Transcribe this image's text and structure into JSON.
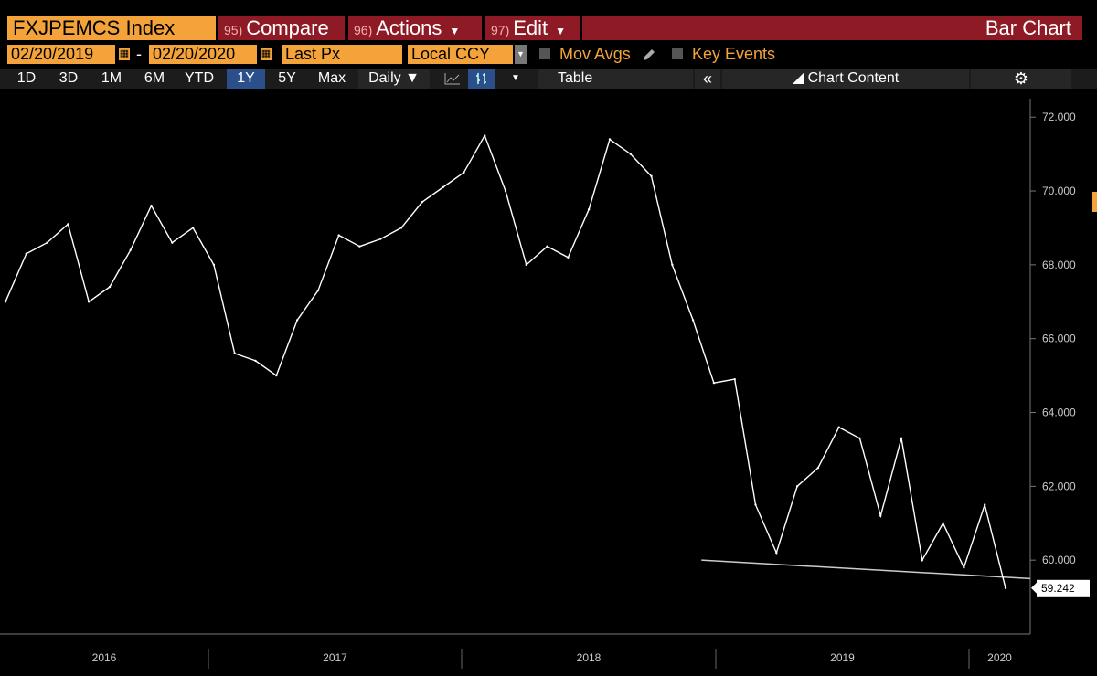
{
  "header": {
    "ticker": "FXJPEMCS Index",
    "compare": {
      "num": "95)",
      "label": "Compare"
    },
    "actions": {
      "num": "96)",
      "label": "Actions"
    },
    "edit": {
      "num": "97)",
      "label": "Edit"
    },
    "chart_title": "Bar Chart"
  },
  "controls": {
    "start_date": "02/20/2019",
    "end_date": "02/20/2020",
    "date_separator": "-",
    "field": "Last Px",
    "currency": "Local CCY",
    "mov_avgs": "Mov Avgs",
    "key_events": "Key Events"
  },
  "ranges": [
    "1D",
    "3D",
    "1M",
    "6M",
    "YTD",
    "1Y",
    "5Y",
    "Max"
  ],
  "active_range": "1Y",
  "frequency": "Daily",
  "table_label": "Table",
  "chart_content_label": "Chart Content",
  "icons": [
    "calendar-icon",
    "pencil-icon",
    "line-chart-icon",
    "bar-chart-icon",
    "double-chevron-left-icon",
    "chart-content-icon",
    "gear-icon"
  ],
  "colors": {
    "accent": "#f3a33a",
    "header_red": "#8e1a25",
    "active_blue": "#2a4f8a",
    "line": "#ffffff",
    "background": "#000000"
  },
  "chart_data": {
    "type": "line",
    "series": [
      {
        "x": [
          0,
          5,
          10,
          15,
          20,
          25,
          30,
          35,
          40,
          45,
          50,
          55,
          60,
          65,
          70,
          75,
          80,
          85,
          90,
          95,
          100,
          105,
          110,
          115,
          120,
          125,
          130,
          135,
          140,
          145,
          150,
          155,
          160,
          165,
          170,
          175,
          180,
          185,
          190,
          195,
          200,
          205,
          210,
          215,
          220,
          225,
          230,
          235,
          240
        ],
        "values": [
          67.0,
          68.3,
          68.6,
          69.1,
          67.0,
          67.4,
          68.4,
          69.6,
          68.6,
          69.0,
          68.0,
          65.6,
          65.4,
          65.0,
          66.5,
          67.3,
          68.8,
          68.5,
          68.7,
          69.0,
          69.7,
          70.1,
          70.5,
          71.5,
          70.0,
          68.0,
          68.5,
          68.2,
          69.5,
          71.4,
          71.0,
          70.4,
          68.0,
          66.5,
          64.8,
          64.9,
          61.5,
          60.2,
          62.0,
          62.5,
          63.6,
          63.3,
          61.2,
          63.3,
          60.0,
          61.0,
          59.8,
          61.5,
          59.242
        ]
      }
    ],
    "x_ticks": [
      "2016",
      "2017",
      "2018",
      "2019",
      "2020"
    ],
    "y_ticks": [
      "72.000",
      "70.000",
      "68.000",
      "66.000",
      "64.000",
      "62.000",
      "60.000"
    ],
    "ylim": [
      58,
      72.5
    ],
    "last_value": "59.242",
    "support_line": [
      {
        "x": 167,
        "y": 60.0
      },
      {
        "x": 240,
        "y": 59.5
      }
    ]
  }
}
